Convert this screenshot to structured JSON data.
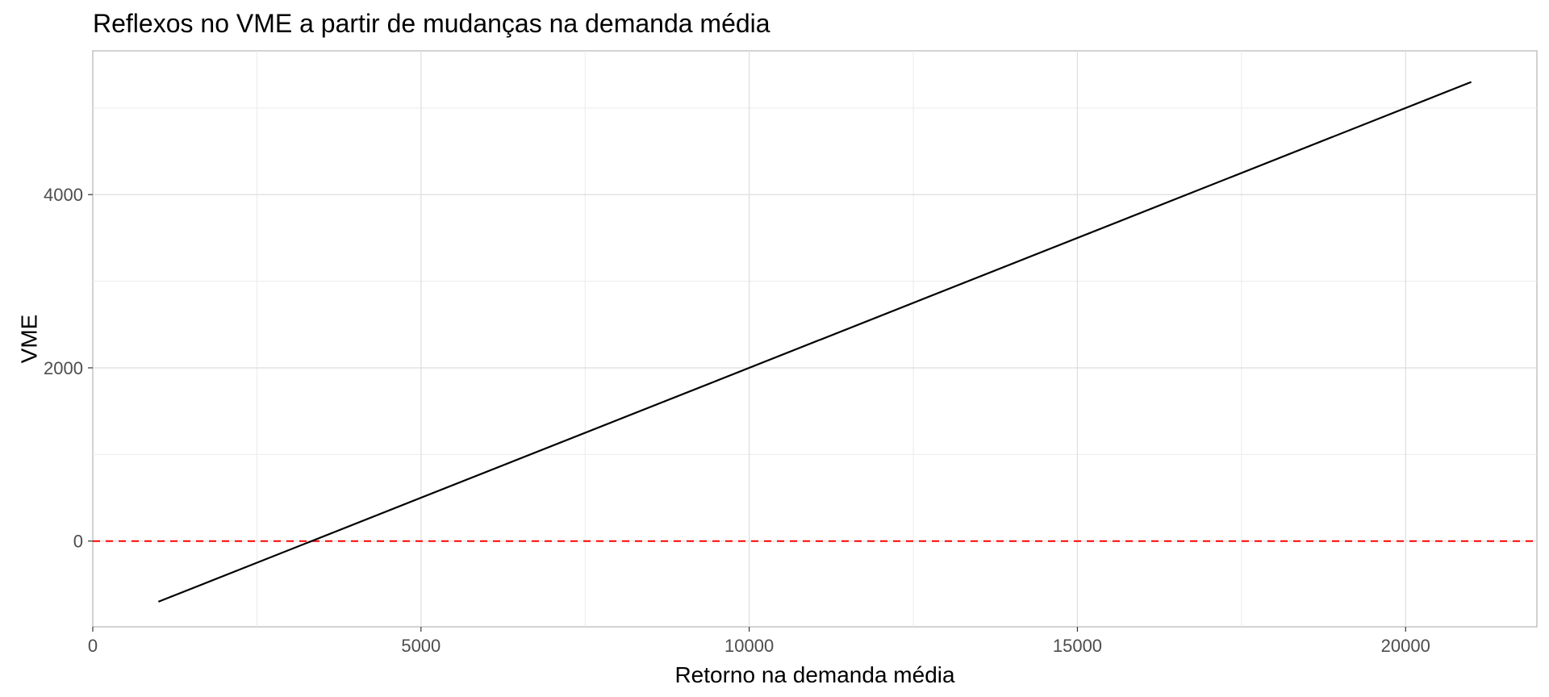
{
  "chart_data": {
    "type": "line",
    "title": "Reflexos no VME a partir de mudanças na demanda média",
    "xlabel": "Retorno na demanda média",
    "ylabel": "VME",
    "xlim": [
      0,
      22000
    ],
    "ylim": [
      -990,
      5660
    ],
    "x_ticks": [
      0,
      5000,
      10000,
      15000,
      20000
    ],
    "x_tick_labels": [
      "0",
      "5000",
      "10000",
      "15000",
      "20000"
    ],
    "y_ticks": [
      0,
      2000,
      4000
    ],
    "y_tick_labels": [
      "0",
      "2000",
      "4000"
    ],
    "grid": true,
    "series": [
      {
        "x": [
          1000,
          21000
        ],
        "y": [
          -700,
          5300
        ],
        "color": "#000000"
      }
    ],
    "reference_lines": [
      {
        "orientation": "horizontal",
        "y": 0,
        "color": "#ff0000",
        "style": "dashed"
      }
    ]
  }
}
